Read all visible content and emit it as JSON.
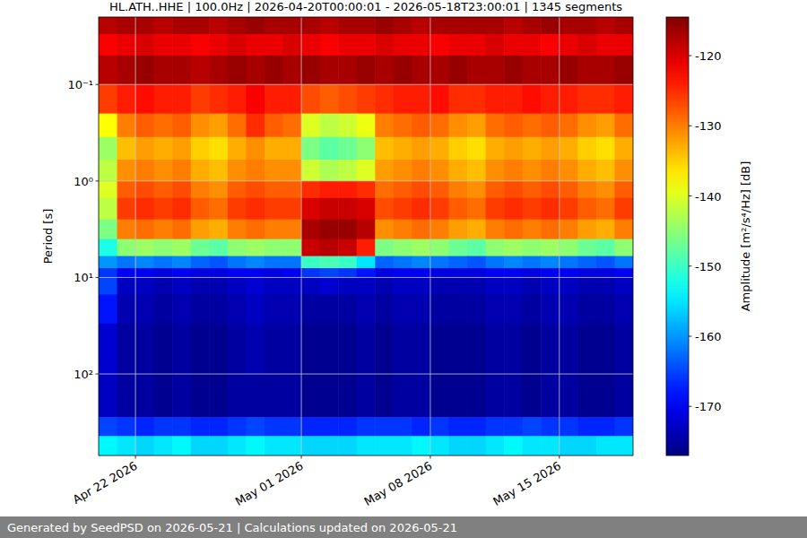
{
  "chart_data": {
    "type": "heatmap",
    "title": "HL.ATH..HHE | 100.0Hz | 2026-04-20T00:00:01 - 2026-05-18T23:00:01 | 1345 segments",
    "y_label": "Period [s]",
    "footer": "Generated by SeedPSD on 2026-05-21 | Calculations updated on 2026-05-21",
    "color": "jet",
    "log": "y",
    "grid": true,
    "xlim": [
      "2026-04-20",
      "2026-05-19"
    ],
    "xticks": [
      {
        "value": "2026-04-22",
        "label": "Apr 22 2026"
      },
      {
        "value": "2026-05-01",
        "label": "May 01 2026"
      },
      {
        "value": "2026-05-08",
        "label": "May 08 2026"
      },
      {
        "value": "2026-05-15",
        "label": "May 15 2026"
      }
    ],
    "ylim": [
      700,
      0.02
    ],
    "yticks": [
      {
        "value": 0.1,
        "label": "10⁻¹"
      },
      {
        "value": 1,
        "label": "10⁰"
      },
      {
        "value": 10,
        "label": "10¹"
      },
      {
        "value": 100,
        "label": "10²"
      }
    ],
    "x_edges": [
      "2026-04-20",
      "2026-04-21",
      "2026-04-22",
      "2026-04-23",
      "2026-04-24",
      "2026-04-25",
      "2026-04-26",
      "2026-04-27",
      "2026-04-28",
      "2026-04-29",
      "2026-04-30",
      "2026-05-01",
      "2026-05-02",
      "2026-05-03",
      "2026-05-04",
      "2026-05-05",
      "2026-05-06",
      "2026-05-07",
      "2026-05-08",
      "2026-05-09",
      "2026-05-10",
      "2026-05-11",
      "2026-05-12",
      "2026-05-13",
      "2026-05-14",
      "2026-05-15",
      "2026-05-16",
      "2026-05-17",
      "2026-05-18",
      "2026-05-19"
    ],
    "y_edges": [
      0.02,
      0.03,
      0.05,
      0.1,
      0.2,
      0.35,
      0.6,
      1,
      1.5,
      2.5,
      4,
      6,
      8,
      10,
      15,
      30,
      100,
      280,
      440,
      700
    ],
    "values": [
      [
        -118,
        -117,
        -117,
        -118,
        -117,
        -117,
        -118,
        -117,
        -116,
        -117,
        -117,
        -117,
        -118,
        -117,
        -117,
        -116,
        -117,
        -118,
        -117,
        -117,
        -117,
        -117,
        -118,
        -117,
        -116,
        -117,
        -117,
        -118,
        -117
      ],
      [
        -122,
        -121,
        -120,
        -121,
        -121,
        -122,
        -121,
        -120,
        -121,
        -121,
        -120,
        -121,
        -122,
        -121,
        -121,
        -120,
        -121,
        -121,
        -122,
        -121,
        -121,
        -120,
        -121,
        -121,
        -122,
        -121,
        -120,
        -121,
        -121
      ],
      [
        -118,
        -117,
        -116,
        -117,
        -117,
        -118,
        -117,
        -116,
        -117,
        -116,
        -117,
        -116,
        -117,
        -117,
        -116,
        -117,
        -116,
        -117,
        -117,
        -116,
        -117,
        -117,
        -116,
        -117,
        -117,
        -116,
        -117,
        -117,
        -116
      ],
      [
        -126,
        -124,
        -123,
        -124,
        -124,
        -126,
        -125,
        -124,
        -122,
        -124,
        -124,
        -127,
        -128,
        -127,
        -126,
        -125,
        -124,
        -124,
        -123,
        -125,
        -125,
        -124,
        -124,
        -123,
        -124,
        -124,
        -125,
        -125,
        -124
      ],
      [
        -138,
        -130,
        -128,
        -129,
        -128,
        -131,
        -132,
        -129,
        -125,
        -128,
        -129,
        -140,
        -142,
        -141,
        -139,
        -130,
        -129,
        -128,
        -129,
        -131,
        -132,
        -129,
        -128,
        -129,
        -128,
        -129,
        -131,
        -132,
        -129
      ],
      [
        -144,
        -134,
        -132,
        -133,
        -132,
        -135,
        -136,
        -133,
        -131,
        -133,
        -133,
        -146,
        -148,
        -147,
        -145,
        -134,
        -133,
        -132,
        -133,
        -135,
        -136,
        -133,
        -132,
        -133,
        -132,
        -133,
        -135,
        -136,
        -133
      ],
      [
        -142,
        -131,
        -130,
        -131,
        -130,
        -133,
        -134,
        -131,
        -130,
        -131,
        -131,
        -141,
        -143,
        -142,
        -140,
        -132,
        -131,
        -130,
        -131,
        -133,
        -134,
        -131,
        -130,
        -131,
        -130,
        -131,
        -133,
        -134,
        -131
      ],
      [
        -140,
        -128,
        -127,
        -128,
        -127,
        -130,
        -131,
        -128,
        -127,
        -128,
        -128,
        -125,
        -124,
        -124,
        -125,
        -129,
        -128,
        -127,
        -128,
        -130,
        -131,
        -128,
        -127,
        -128,
        -127,
        -128,
        -130,
        -131,
        -128
      ],
      [
        -142,
        -126,
        -125,
        -126,
        -125,
        -128,
        -129,
        -126,
        -125,
        -126,
        -126,
        -120,
        -119,
        -119,
        -120,
        -127,
        -126,
        -125,
        -126,
        -128,
        -129,
        -126,
        -125,
        -126,
        -125,
        -126,
        -128,
        -129,
        -126
      ],
      [
        -146,
        -130,
        -129,
        -130,
        -129,
        -132,
        -133,
        -130,
        -129,
        -130,
        -130,
        -117,
        -116,
        -116,
        -118,
        -131,
        -130,
        -129,
        -130,
        -132,
        -133,
        -130,
        -129,
        -130,
        -129,
        -130,
        -132,
        -133,
        -130
      ],
      [
        -152,
        -145,
        -144,
        -145,
        -144,
        -147,
        -148,
        -145,
        -144,
        -145,
        -145,
        -119,
        -118,
        -119,
        -124,
        -146,
        -145,
        -144,
        -145,
        -147,
        -148,
        -145,
        -144,
        -145,
        -144,
        -145,
        -147,
        -148,
        -145
      ],
      [
        -160,
        -162,
        -161,
        -162,
        -161,
        -163,
        -164,
        -162,
        -161,
        -162,
        -162,
        -150,
        -149,
        -150,
        -155,
        -163,
        -162,
        -161,
        -162,
        -163,
        -164,
        -162,
        -161,
        -162,
        -161,
        -162,
        -163,
        -164,
        -162
      ],
      [
        -166,
        -170,
        -170,
        -171,
        -170,
        -171,
        -171,
        -170,
        -170,
        -171,
        -170,
        -166,
        -165,
        -166,
        -168,
        -171,
        -170,
        -170,
        -171,
        -171,
        -171,
        -170,
        -170,
        -171,
        -170,
        -170,
        -171,
        -171,
        -170
      ],
      [
        -165,
        -173,
        -173,
        -174,
        -173,
        -174,
        -174,
        -173,
        -172,
        -173,
        -173,
        -173,
        -172,
        -173,
        -173,
        -174,
        -173,
        -173,
        -174,
        -174,
        -174,
        -173,
        -173,
        -174,
        -173,
        -173,
        -174,
        -174,
        -173
      ],
      [
        -168,
        -174,
        -174,
        -175,
        -174,
        -175,
        -175,
        -174,
        -173,
        -174,
        -174,
        -175,
        -175,
        -175,
        -174,
        -175,
        -174,
        -174,
        -175,
        -175,
        -175,
        -174,
        -174,
        -175,
        -174,
        -174,
        -175,
        -175,
        -174
      ],
      [
        -172,
        -175,
        -175,
        -176,
        -175,
        -176,
        -176,
        -175,
        -174,
        -175,
        -175,
        -176,
        -176,
        -176,
        -175,
        -176,
        -175,
        -175,
        -176,
        -176,
        -176,
        -175,
        -175,
        -176,
        -175,
        -175,
        -176,
        -176,
        -175
      ],
      [
        -173,
        -175,
        -175,
        -176,
        -175,
        -176,
        -176,
        -175,
        -175,
        -175,
        -175,
        -176,
        -176,
        -176,
        -175,
        -176,
        -175,
        -175,
        -176,
        -176,
        -176,
        -175,
        -175,
        -176,
        -175,
        -175,
        -176,
        -176,
        -175
      ],
      [
        -165,
        -166,
        -167,
        -166,
        -166,
        -167,
        -167,
        -166,
        -165,
        -166,
        -166,
        -167,
        -167,
        -167,
        -166,
        -166,
        -166,
        -167,
        -166,
        -167,
        -167,
        -166,
        -166,
        -165,
        -166,
        -166,
        -167,
        -167,
        -166
      ],
      [
        -154,
        -155,
        -156,
        -155,
        -154,
        -156,
        -156,
        -155,
        -154,
        -155,
        -155,
        -156,
        -156,
        -156,
        -155,
        -155,
        -155,
        -154,
        -155,
        -156,
        -156,
        -155,
        -154,
        -155,
        -155,
        -156,
        -156,
        -155,
        -155
      ]
    ],
    "colorbar": {
      "label": "Amplitude [m²/s⁴/Hz] [dB]",
      "range": [
        -177,
        -114.5
      ],
      "ticks": [
        -170,
        -160,
        -150,
        -140,
        -130,
        -120
      ]
    }
  }
}
